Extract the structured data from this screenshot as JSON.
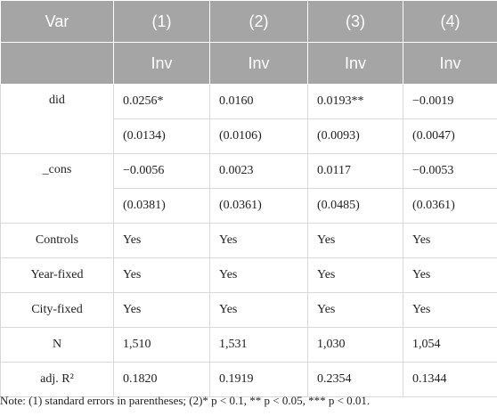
{
  "table": {
    "header": [
      [
        "Var",
        "(1)",
        "(2)",
        "(3)",
        "(4)"
      ],
      [
        "Inv",
        "Inv",
        "Inv",
        "Inv"
      ]
    ],
    "rows": [
      {
        "label": "did",
        "cells": [
          [
            "0.0256*",
            "(0.0134)"
          ],
          [
            "0.0160",
            "(0.0106)"
          ],
          [
            "0.0193**",
            "(0.0093)"
          ],
          [
            "−0.0019",
            "(0.0047)"
          ]
        ]
      },
      {
        "label": "_cons",
        "cells": [
          [
            "−0.0056",
            "(0.0381)"
          ],
          [
            "0.0023",
            "(0.0361)"
          ],
          [
            "0.0117",
            "(0.0485)"
          ],
          [
            "−0.0053",
            "(0.0361)"
          ]
        ]
      },
      {
        "label": "Controls",
        "cells": [
          "Yes",
          "Yes",
          "Yes",
          "Yes"
        ]
      },
      {
        "label": "Year-fixed",
        "cells": [
          "Yes",
          "Yes",
          "Yes",
          "Yes"
        ]
      },
      {
        "label": "City-fixed",
        "cells": [
          "Yes",
          "Yes",
          "Yes",
          "Yes"
        ]
      },
      {
        "label": "N",
        "cells": [
          "1,510",
          "1,531",
          "1,030",
          "1,054"
        ]
      },
      {
        "label": "adj. R²",
        "cells": [
          "0.1820",
          "0.1919",
          "0.2354",
          "0.1344"
        ]
      }
    ],
    "note": "Note: (1) standard errors in parentheses; (2)* p < 0.1, ** p < 0.05, *** p < 0.01."
  }
}
